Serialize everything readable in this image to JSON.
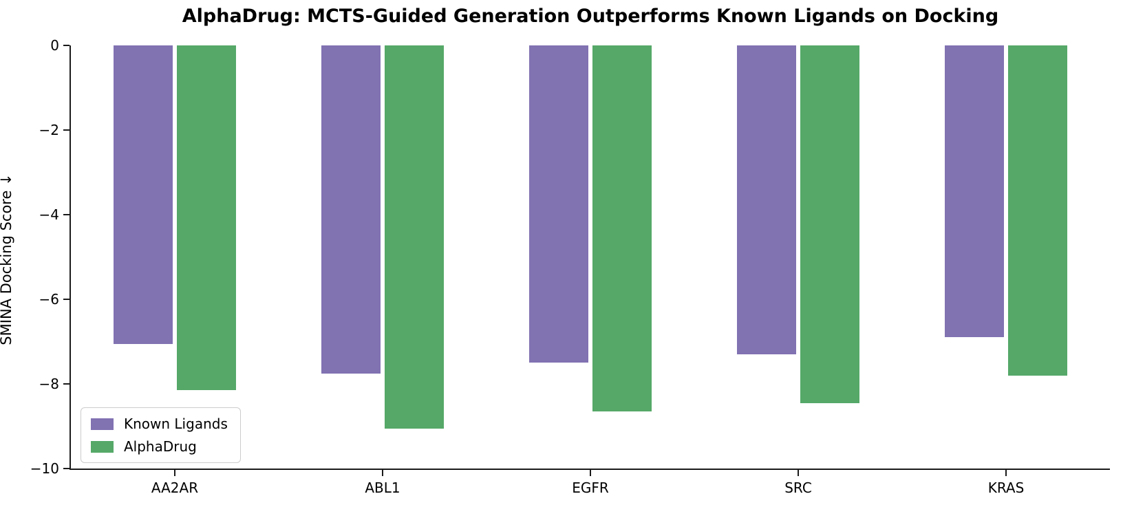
{
  "chart_data": {
    "type": "bar",
    "orientation": "vertical",
    "title": "AlphaDrug: MCTS-Guided Generation Outperforms Known Ligands on Docking",
    "xlabel": "",
    "ylabel": "SMINA Docking Score ↓",
    "categories": [
      "AA2AR",
      "ABL1",
      "EGFR",
      "SRC",
      "KRAS"
    ],
    "series": [
      {
        "name": "Known Ligands",
        "color": "#8172b2",
        "values": [
          -7.05,
          -7.75,
          -7.5,
          -7.3,
          -6.9
        ]
      },
      {
        "name": "AlphaDrug",
        "color": "#55a868",
        "values": [
          -8.15,
          -9.05,
          -8.65,
          -8.45,
          -7.8
        ]
      }
    ],
    "ylim": [
      -10,
      0
    ],
    "yticks": [
      0,
      -2,
      -4,
      -6,
      -8,
      -10
    ],
    "ytick_labels": [
      "0",
      "−2",
      "−4",
      "−6",
      "−8",
      "−10"
    ],
    "grid": false,
    "legend_position": "lower left"
  },
  "legend": {
    "items": [
      {
        "label": "Known Ligands",
        "color": "#8172b2"
      },
      {
        "label": "AlphaDrug",
        "color": "#55a868"
      }
    ]
  }
}
